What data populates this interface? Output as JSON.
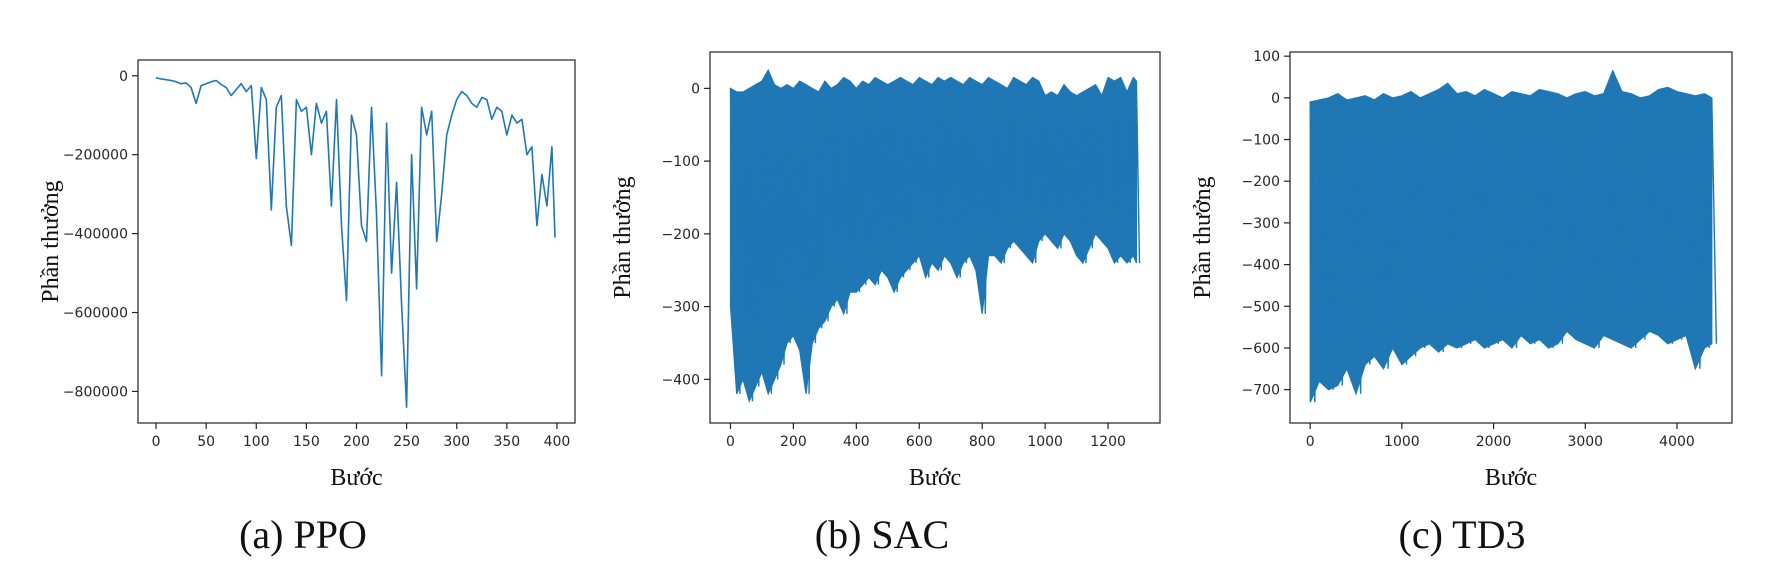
{
  "chart_data": [
    {
      "type": "line",
      "caption": "(a) PPO",
      "xlabel": "Bước",
      "ylabel": "Phần thưởng",
      "xlim": [
        -18,
        418
      ],
      "ylim": [
        -880000,
        40000
      ],
      "xticks": [
        0,
        50,
        100,
        150,
        200,
        250,
        300,
        350,
        400
      ],
      "yticks": [
        0,
        -200000,
        -400000,
        -600000,
        -800000
      ],
      "color": "#1f77b4",
      "series": [
        {
          "x": [
            0,
            5,
            10,
            15,
            20,
            25,
            30,
            35,
            40,
            45,
            50,
            55,
            60,
            65,
            70,
            75,
            80,
            85,
            90,
            95,
            100,
            105,
            110,
            115,
            120,
            125,
            130,
            135,
            140,
            145,
            150,
            155,
            160,
            165,
            170,
            175,
            180,
            185,
            190,
            195,
            200,
            205,
            210,
            215,
            220,
            225,
            230,
            235,
            240,
            245,
            250,
            255,
            260,
            265,
            270,
            275,
            280,
            285,
            290,
            295,
            300,
            305,
            310,
            315,
            320,
            325,
            330,
            335,
            340,
            345,
            350,
            355,
            360,
            365,
            370,
            375,
            380,
            385,
            390,
            395,
            398
          ],
          "values": [
            -5000,
            -8000,
            -10000,
            -12000,
            -15000,
            -20000,
            -18000,
            -30000,
            -70000,
            -25000,
            -20000,
            -15000,
            -12000,
            -22000,
            -30000,
            -50000,
            -35000,
            -20000,
            -40000,
            -25000,
            -210000,
            -30000,
            -60000,
            -340000,
            -80000,
            -50000,
            -330000,
            -430000,
            -60000,
            -90000,
            -80000,
            -200000,
            -70000,
            -120000,
            -90000,
            -330000,
            -60000,
            -380000,
            -570000,
            -100000,
            -150000,
            -380000,
            -420000,
            -80000,
            -350000,
            -760000,
            -120000,
            -500000,
            -270000,
            -580000,
            -840000,
            -200000,
            -540000,
            -80000,
            -150000,
            -90000,
            -420000,
            -300000,
            -150000,
            -100000,
            -60000,
            -40000,
            -50000,
            -70000,
            -80000,
            -55000,
            -60000,
            -110000,
            -80000,
            -90000,
            -150000,
            -100000,
            -120000,
            -110000,
            -200000,
            -180000,
            -380000,
            -250000,
            -330000,
            -180000,
            -410000
          ]
        }
      ]
    },
    {
      "type": "line",
      "caption": "(b) SAC",
      "xlabel": "Bước",
      "ylabel": "Phần thưởng",
      "xlim": [
        -65,
        1365
      ],
      "ylim": [
        -460,
        50
      ],
      "xticks": [
        0,
        200,
        400,
        600,
        800,
        1000,
        1200
      ],
      "yticks": [
        0,
        -100,
        -200,
        -300,
        -400
      ],
      "color": "#1f77b4",
      "series": [
        {
          "x": [
            0,
            20,
            40,
            60,
            80,
            100,
            120,
            140,
            160,
            180,
            200,
            220,
            240,
            260,
            280,
            300,
            320,
            340,
            360,
            380,
            400,
            420,
            440,
            460,
            480,
            500,
            520,
            540,
            560,
            580,
            600,
            620,
            640,
            660,
            680,
            700,
            720,
            740,
            760,
            780,
            800,
            820,
            840,
            860,
            880,
            900,
            920,
            940,
            960,
            980,
            1000,
            1020,
            1040,
            1060,
            1080,
            1100,
            1120,
            1140,
            1160,
            1180,
            1200,
            1220,
            1240,
            1260,
            1280,
            1290
          ],
          "low": [
            -300,
            -420,
            -400,
            -430,
            -410,
            -390,
            -420,
            -400,
            -380,
            -350,
            -340,
            -360,
            -420,
            -350,
            -330,
            -320,
            -300,
            -290,
            -310,
            -280,
            -280,
            -270,
            -260,
            -270,
            -250,
            -260,
            -280,
            -260,
            -250,
            -240,
            -230,
            -260,
            -240,
            -250,
            -230,
            -240,
            -260,
            -240,
            -230,
            -250,
            -310,
            -230,
            -230,
            -240,
            -220,
            -210,
            -220,
            -230,
            -240,
            -210,
            -200,
            -210,
            -220,
            -200,
            -210,
            -230,
            -240,
            -220,
            -200,
            -210,
            -220,
            -240,
            -230,
            -240,
            -230,
            -240
          ],
          "high": [
            0,
            -5,
            -5,
            0,
            5,
            10,
            25,
            5,
            0,
            5,
            0,
            10,
            5,
            0,
            -5,
            10,
            0,
            5,
            15,
            10,
            0,
            10,
            5,
            15,
            10,
            5,
            10,
            15,
            10,
            5,
            15,
            10,
            5,
            15,
            10,
            15,
            10,
            5,
            15,
            10,
            5,
            15,
            10,
            5,
            0,
            15,
            10,
            5,
            15,
            10,
            -10,
            -5,
            -10,
            5,
            -5,
            -10,
            -5,
            0,
            5,
            -10,
            15,
            10,
            15,
            -5,
            15,
            10
          ]
        }
      ]
    },
    {
      "type": "line",
      "caption": "(c) TD3",
      "xlabel": "Bước",
      "ylabel": "Phần thưởng",
      "xlim": [
        -220,
        4600
      ],
      "ylim": [
        -780,
        110
      ],
      "xticks": [
        0,
        1000,
        2000,
        3000,
        4000
      ],
      "yticks": [
        100,
        0,
        -100,
        -200,
        -300,
        -400,
        -500,
        -600,
        -700
      ],
      "color": "#1f77b4",
      "series": [
        {
          "x": [
            0,
            100,
            200,
            300,
            400,
            500,
            600,
            700,
            800,
            900,
            1000,
            1100,
            1200,
            1300,
            1400,
            1500,
            1600,
            1700,
            1800,
            1900,
            2000,
            2100,
            2200,
            2300,
            2400,
            2500,
            2600,
            2700,
            2800,
            2900,
            3000,
            3100,
            3200,
            3300,
            3400,
            3500,
            3600,
            3700,
            3800,
            3900,
            4000,
            4100,
            4200,
            4300,
            4380
          ],
          "low": [
            -730,
            -680,
            -700,
            -690,
            -650,
            -710,
            -640,
            -620,
            -650,
            -600,
            -640,
            -620,
            -600,
            -590,
            -610,
            -590,
            -600,
            -590,
            -580,
            -600,
            -590,
            -580,
            -600,
            -570,
            -590,
            -580,
            -600,
            -590,
            -560,
            -580,
            -590,
            -600,
            -570,
            -580,
            -590,
            -600,
            -580,
            -560,
            -570,
            -590,
            -580,
            -570,
            -650,
            -600,
            -590
          ],
          "high": [
            -10,
            -5,
            0,
            10,
            -5,
            0,
            5,
            -5,
            10,
            0,
            5,
            15,
            0,
            10,
            20,
            35,
            10,
            15,
            5,
            20,
            10,
            0,
            15,
            10,
            5,
            20,
            15,
            10,
            0,
            10,
            15,
            5,
            10,
            65,
            15,
            10,
            0,
            5,
            20,
            25,
            15,
            10,
            5,
            10,
            0
          ]
        }
      ]
    }
  ]
}
